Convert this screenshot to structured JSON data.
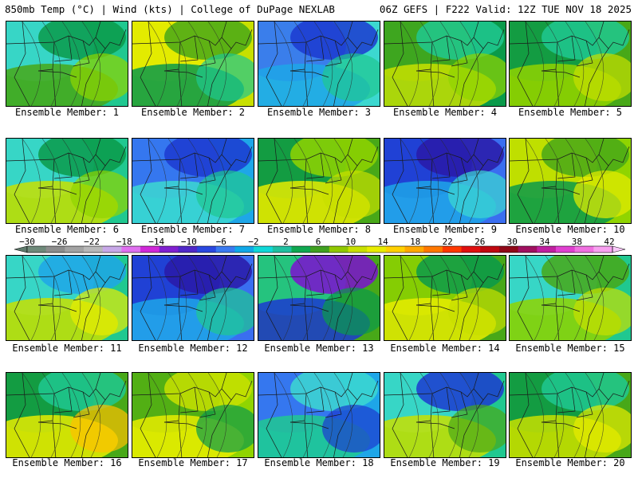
{
  "header": {
    "left": "850mb Temp (°C) | Wind (kts) | College of DuPage NEXLAB",
    "right": "06Z GEFS | F222 Valid: 12Z TUE NOV 18 2025"
  },
  "caption_prefix": "Ensemble Member: ",
  "members": [
    {
      "label": "Ensemble Member: 1",
      "member": 1,
      "blobs": [
        "#20c890",
        "#3cd8d0",
        "#0a9a4a",
        "#48a818",
        "#90d400"
      ]
    },
    {
      "label": "Ensemble Member: 2",
      "member": 2,
      "blobs": [
        "#c8e000",
        "#e8ec00",
        "#48a818",
        "#0a9a4a",
        "#20c890"
      ]
    },
    {
      "label": "Ensemble Member: 3",
      "member": 3,
      "blobs": [
        "#3cd8d0",
        "#3a6ef0",
        "#1c3ad0",
        "#1ea6e8",
        "#20c890"
      ]
    },
    {
      "label": "Ensemble Member: 4",
      "member": 4,
      "blobs": [
        "#0a9a4a",
        "#48a818",
        "#20c890",
        "#c8e000",
        "#90d400"
      ]
    },
    {
      "label": "Ensemble Member: 5",
      "member": 5,
      "blobs": [
        "#48a818",
        "#0a9a4a",
        "#20c890",
        "#90d400",
        "#c8e000"
      ]
    },
    {
      "label": "Ensemble Member: 6",
      "member": 6,
      "blobs": [
        "#20c890",
        "#3cd8d0",
        "#0a9a4a",
        "#c8e000",
        "#90d400"
      ]
    },
    {
      "label": "Ensemble Member: 7",
      "member": 7,
      "blobs": [
        "#1ea6e8",
        "#3a6ef0",
        "#1c3ad0",
        "#3cd8d0",
        "#20c890"
      ]
    },
    {
      "label": "Ensemble Member: 8",
      "member": 8,
      "blobs": [
        "#48a818",
        "#0a9a4a",
        "#90d400",
        "#e8ec00",
        "#c8e000"
      ]
    },
    {
      "label": "Ensemble Member: 9",
      "member": 9,
      "blobs": [
        "#3a6ef0",
        "#1c3ad0",
        "#2a1aa8",
        "#1ea6e8",
        "#3cd8d0"
      ]
    },
    {
      "label": "Ensemble Member: 10",
      "member": 10,
      "blobs": [
        "#90d400",
        "#c8e000",
        "#48a818",
        "#0a9a4a",
        "#e8ec00"
      ]
    },
    {
      "label": "Ensemble Member: 11",
      "member": 11,
      "blobs": [
        "#20c890",
        "#3cd8d0",
        "#1ea6e8",
        "#c8e000",
        "#e8ec00"
      ]
    },
    {
      "label": "Ensemble Member: 12",
      "member": 12,
      "blobs": [
        "#3a6ef0",
        "#1c3ad0",
        "#2a1aa8",
        "#1ea6e8",
        "#20c890"
      ]
    },
    {
      "label": "Ensemble Member: 13",
      "member": 13,
      "blobs": [
        "#48a818",
        "#20c890",
        "#7c10d0",
        "#1c3ad0",
        "#0a9a4a"
      ]
    },
    {
      "label": "Ensemble Member: 14",
      "member": 14,
      "blobs": [
        "#48a818",
        "#90d400",
        "#0a9a4a",
        "#e8ec00",
        "#c8e000"
      ]
    },
    {
      "label": "Ensemble Member: 15",
      "member": 15,
      "blobs": [
        "#20c890",
        "#3cd8d0",
        "#48a818",
        "#90d400",
        "#c8e000"
      ]
    },
    {
      "label": "Ensemble Member: 16",
      "member": 16,
      "blobs": [
        "#48a818",
        "#0a9a4a",
        "#20c890",
        "#e8ec00",
        "#ffc000"
      ]
    },
    {
      "label": "Ensemble Member: 17",
      "member": 17,
      "blobs": [
        "#90d400",
        "#48a818",
        "#c8e000",
        "#e8ec00",
        "#0a9a4a"
      ]
    },
    {
      "label": "Ensemble Member: 18",
      "member": 18,
      "blobs": [
        "#1ea6e8",
        "#3a6ef0",
        "#3cd8d0",
        "#20c890",
        "#1c3ad0"
      ]
    },
    {
      "label": "Ensemble Member: 19",
      "member": 19,
      "blobs": [
        "#20c890",
        "#3cd8d0",
        "#1c3ad0",
        "#c8e000",
        "#48a818"
      ]
    },
    {
      "label": "Ensemble Member: 20",
      "member": 20,
      "blobs": [
        "#48a818",
        "#0a9a4a",
        "#20c890",
        "#c8e000",
        "#e8ec00"
      ]
    }
  ],
  "colorbar": {
    "ticks": [
      "−30",
      "−26",
      "−22",
      "−18",
      "−14",
      "−10",
      "−6",
      "−2",
      "2",
      "6",
      "10",
      "14",
      "18",
      "22",
      "26",
      "30",
      "34",
      "38",
      "42"
    ],
    "colors": [
      "#6f8a7a",
      "#8d8d8d",
      "#a3a3a3",
      "#b8b8b8",
      "#c8a8e8",
      "#e070f0",
      "#d028d8",
      "#8020d0",
      "#5028c8",
      "#2a48e0",
      "#3a7af0",
      "#10a8e8",
      "#10d8d8",
      "#20c0a0",
      "#10a850",
      "#40a020",
      "#90c800",
      "#c8e000",
      "#e8ec00",
      "#ffd000",
      "#ffa800",
      "#ff7800",
      "#ff3800",
      "#e01010",
      "#c00810",
      "#900818",
      "#a01060",
      "#c020a0",
      "#e040d0",
      "#f070e0",
      "#f8a0f0"
    ]
  }
}
